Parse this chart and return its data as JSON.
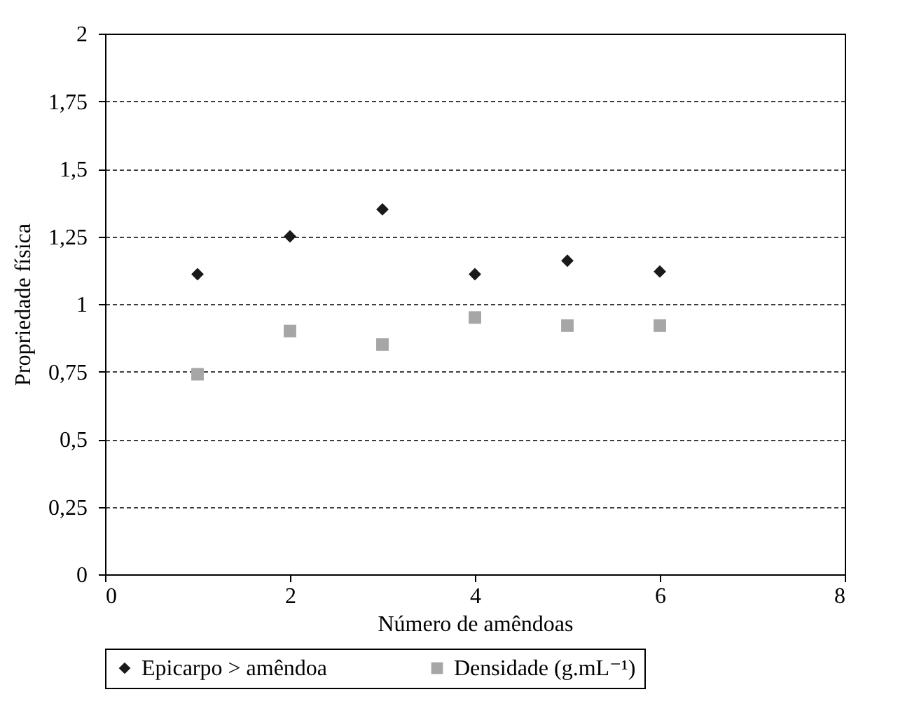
{
  "chart_data": {
    "type": "scatter",
    "xlabel": "Número de amêndoas",
    "ylabel": "Propriedade física",
    "x": [
      1,
      2,
      3,
      4,
      5,
      6
    ],
    "series": [
      {
        "name": "Epicarpo > amêndoa",
        "color": "#1a1a1a",
        "marker": "diamond",
        "values": [
          1.11,
          1.25,
          1.35,
          1.11,
          1.16,
          1.12
        ]
      },
      {
        "name": "Densidade (g.mL⁻¹)",
        "color": "#a6a6a6",
        "marker": "square",
        "values": [
          0.74,
          0.9,
          0.85,
          0.95,
          0.92,
          0.92
        ]
      }
    ],
    "xlim": [
      0,
      8
    ],
    "xticks": [
      0,
      2,
      4,
      6,
      8
    ],
    "ylim": [
      0,
      2
    ],
    "yticks": [
      0,
      {
        "value": 0.25,
        "label": "0,25"
      },
      {
        "value": 0.5,
        "label": "0,5"
      },
      {
        "value": 0.75,
        "label": "0,75"
      },
      1,
      {
        "value": 1.25,
        "label": "1,25"
      },
      {
        "value": 1.5,
        "label": "1,5"
      },
      {
        "value": 1.75,
        "label": "1,75"
      },
      2
    ],
    "grid": "y",
    "legend": "bottom"
  }
}
